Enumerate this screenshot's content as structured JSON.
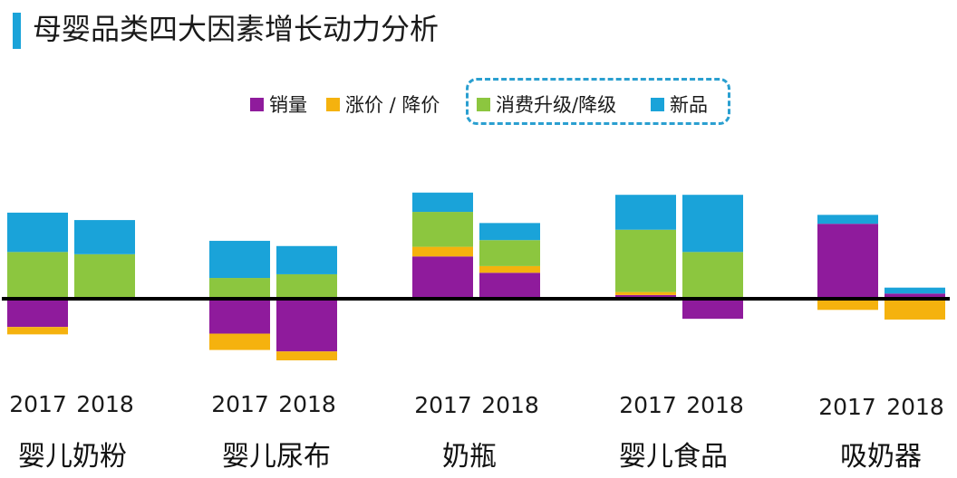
{
  "title": "母婴品类四大因素增长动力分析",
  "colors": {
    "accent": "#1aa3d9",
    "axis": "#000000"
  },
  "legend": {
    "separator": "/",
    "items": [
      {
        "key": "volume",
        "label": "销量",
        "color": "#8f1b9c"
      },
      {
        "key": "price",
        "label": "涨价 / 降价",
        "color": "#f5b20e"
      },
      {
        "key": "upgrade",
        "label": "消费升级/降级",
        "color": "#8cc63f"
      },
      {
        "key": "new",
        "label": "新品",
        "color": "#1aa3d9"
      }
    ]
  },
  "chart_data": {
    "type": "bar",
    "stacked": true,
    "diverging": true,
    "title": "母婴品类四大因素增长动力分析",
    "ylabel": "",
    "xlabel": "",
    "ylim": [
      -90,
      140
    ],
    "categories": [
      "婴儿奶粉",
      "婴儿尿布",
      "奶瓶",
      "婴儿食品",
      "吸奶器"
    ],
    "years": [
      "2017",
      "2018"
    ],
    "series": [
      {
        "name": "销量",
        "color": "#8f1b9c",
        "values": [
          [
            -38,
            0
          ],
          [
            -47,
            -71
          ],
          [
            57,
            35
          ],
          [
            5,
            -27
          ],
          [
            101,
            7
          ]
        ]
      },
      {
        "name": "涨价 / 降价",
        "color": "#f5b20e",
        "values": [
          [
            -10,
            0
          ],
          [
            -22,
            -12
          ],
          [
            13,
            9
          ],
          [
            4,
            0
          ],
          [
            -15,
            -28
          ]
        ]
      },
      {
        "name": "消费升级/降级",
        "color": "#8cc63f",
        "values": [
          [
            63,
            60
          ],
          [
            28,
            33
          ],
          [
            47,
            35
          ],
          [
            84,
            63
          ],
          [
            0,
            0
          ]
        ]
      },
      {
        "name": "新品",
        "color": "#1aa3d9",
        "values": [
          [
            53,
            46
          ],
          [
            50,
            38
          ],
          [
            26,
            23
          ],
          [
            47,
            77
          ],
          [
            12,
            8
          ]
        ]
      }
    ]
  },
  "year_labels": [
    {
      "text": "2017"
    },
    {
      "text": "2018"
    },
    {
      "text": "2017"
    },
    {
      "text": "2018"
    },
    {
      "text": "2017"
    },
    {
      "text": "2018"
    },
    {
      "text": "2017"
    },
    {
      "text": "2018"
    },
    {
      "text": "2017"
    },
    {
      "text": "2018"
    }
  ],
  "category_labels": [
    "婴儿奶粉",
    "婴儿尿布",
    "奶瓶",
    "婴儿食品",
    "吸奶器"
  ]
}
